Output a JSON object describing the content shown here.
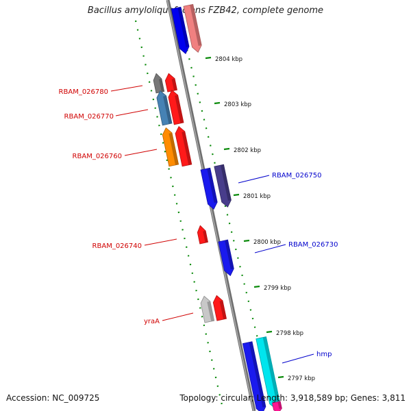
{
  "title": "Bacillus amyloliquefaciens FZB42, complete genome",
  "footer": {
    "accession": "Accession: NC_009725",
    "topology": "Topology: circular; Length: 3,918,589 bp; Genes: 3,811"
  },
  "colors": {
    "backbone": "#8c8c8c",
    "ticks": "#0a8a0a",
    "left_labels": "#d00000",
    "right_labels": "#0000cc",
    "kbp_text": "#111111"
  },
  "kbp_labels": [
    "2804 kbp",
    "2803 kbp",
    "2802 kbp",
    "2801 kbp",
    "2800 kbp",
    "2799 kbp",
    "2798 kbp",
    "2797 kbp"
  ],
  "left_gene_labels": [
    "RBAM_026780",
    "RBAM_026770",
    "RBAM_026760",
    "RBAM_026740",
    "yraA"
  ],
  "right_gene_labels": [
    "RBAM_026750",
    "RBAM_026730",
    "hmp"
  ],
  "gene_blocks": [
    {
      "name": "top-blue",
      "color": "#0000ee",
      "strand": "reverse"
    },
    {
      "name": "top-pink",
      "color": "#f08080",
      "strand": "reverse"
    },
    {
      "name": "RBAM_026780-grey",
      "color": "#777777",
      "strand": "forward"
    },
    {
      "name": "RBAM_026780",
      "color": "#ff1a1a",
      "strand": "forward"
    },
    {
      "name": "RBAM_026770-steel",
      "color": "#4682b4",
      "strand": "forward"
    },
    {
      "name": "RBAM_026770",
      "color": "#ff1a1a",
      "strand": "forward"
    },
    {
      "name": "RBAM_026760-orange",
      "color": "#ff8c00",
      "strand": "forward"
    },
    {
      "name": "RBAM_026760",
      "color": "#ff1a1a",
      "strand": "forward"
    },
    {
      "name": "RBAM_026750-blue",
      "color": "#1a1aee",
      "strand": "reverse"
    },
    {
      "name": "RBAM_026750",
      "color": "#483d8b",
      "strand": "reverse"
    },
    {
      "name": "RBAM_026740",
      "color": "#ff1a1a",
      "strand": "forward"
    },
    {
      "name": "RBAM_026730",
      "color": "#1a1aee",
      "strand": "reverse"
    },
    {
      "name": "yraA-grey",
      "color": "#c8c8c8",
      "strand": "forward"
    },
    {
      "name": "yraA",
      "color": "#ff1a1a",
      "strand": "forward"
    },
    {
      "name": "hmp-blue",
      "color": "#1a1aee",
      "strand": "reverse"
    },
    {
      "name": "hmp",
      "color": "#00e5ee",
      "strand": "reverse"
    },
    {
      "name": "bottom-magenta",
      "color": "#ff1493",
      "strand": "reverse"
    }
  ]
}
